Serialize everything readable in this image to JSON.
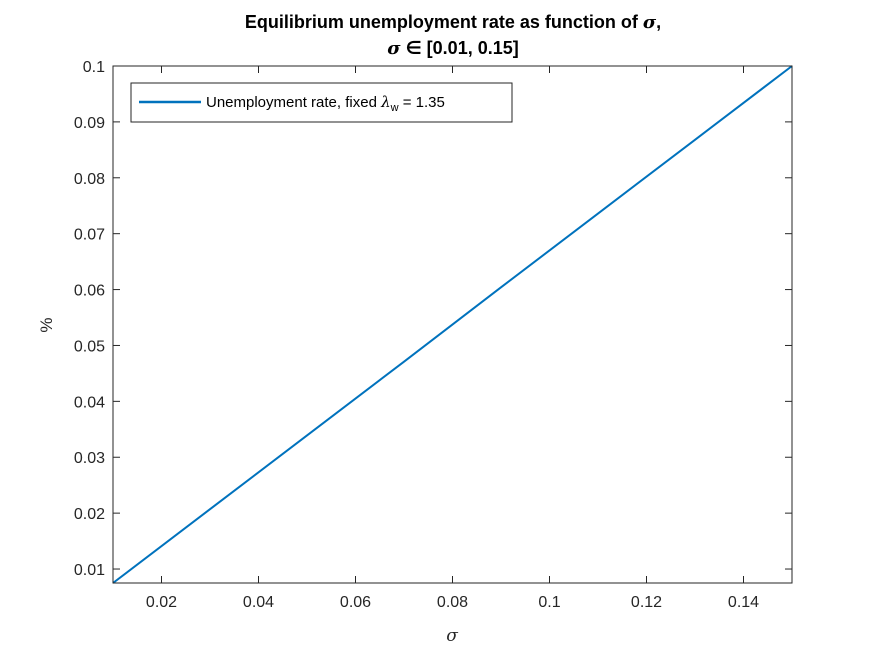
{
  "chart_data": {
    "type": "line",
    "title": {
      "line1_prefix": "Equilibrium unemployment rate as function of ",
      "line1_symbol": "σ",
      "line1_suffix": ",",
      "line2_symbol": "σ",
      "line2_in": " ∈ ",
      "line2_suffix": "[0.01, 0.15]"
    },
    "xlabel": "σ",
    "ylabel": "%",
    "xlim": [
      0.01,
      0.15
    ],
    "ylim": [
      0.0075,
      0.1
    ],
    "xticks": [
      {
        "value": 0.02,
        "label": "0.02"
      },
      {
        "value": 0.04,
        "label": "0.04"
      },
      {
        "value": 0.06,
        "label": "0.06"
      },
      {
        "value": 0.08,
        "label": "0.08"
      },
      {
        "value": 0.1,
        "label": "0.1"
      },
      {
        "value": 0.12,
        "label": "0.12"
      },
      {
        "value": 0.14,
        "label": "0.14"
      }
    ],
    "yticks": [
      {
        "value": 0.01,
        "label": "0.01"
      },
      {
        "value": 0.02,
        "label": "0.02"
      },
      {
        "value": 0.03,
        "label": "0.03"
      },
      {
        "value": 0.04,
        "label": "0.04"
      },
      {
        "value": 0.05,
        "label": "0.05"
      },
      {
        "value": 0.06,
        "label": "0.06"
      },
      {
        "value": 0.07,
        "label": "0.07"
      },
      {
        "value": 0.08,
        "label": "0.08"
      },
      {
        "value": 0.09,
        "label": "0.09"
      },
      {
        "value": 0.1,
        "label": "0.1"
      }
    ],
    "grid": false,
    "legend": {
      "placement": "top-left",
      "prefix": "Unemployment rate, fixed ",
      "symbol": "λ",
      "subscript": "w",
      "suffix": " = 1.35"
    },
    "series": [
      {
        "color": "#0072BD",
        "x": [
          0.01,
          0.03,
          0.05,
          0.07,
          0.09,
          0.11,
          0.13,
          0.15
        ],
        "y": [
          0.0075,
          0.0207,
          0.0339,
          0.0471,
          0.0604,
          0.0736,
          0.0868,
          0.1
        ]
      }
    ]
  }
}
